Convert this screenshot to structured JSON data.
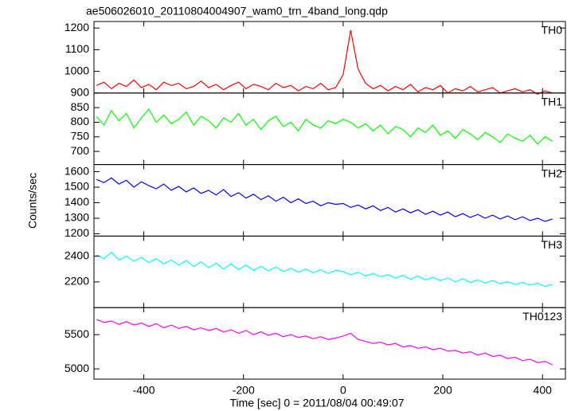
{
  "chart_data": {
    "type": "line",
    "title": "ae506026010_20110804004907_wam0_trn_4band_long.qdp",
    "x_label": "Time [sec] 0 = 2011/08/04 00:49:07",
    "y_label": "Counts/sec",
    "xlim": [
      -500,
      446
    ],
    "xticks": [
      -400,
      -200,
      0,
      200,
      400
    ],
    "x": [
      -495,
      -480,
      -465,
      -450,
      -435,
      -420,
      -405,
      -390,
      -375,
      -360,
      -345,
      -330,
      -315,
      -300,
      -285,
      -270,
      -255,
      -240,
      -225,
      -210,
      -195,
      -180,
      -165,
      -150,
      -135,
      -120,
      -105,
      -90,
      -75,
      -60,
      -45,
      -30,
      -15,
      0,
      15,
      30,
      45,
      60,
      75,
      90,
      105,
      120,
      135,
      150,
      165,
      180,
      195,
      210,
      225,
      240,
      255,
      270,
      285,
      300,
      315,
      330,
      345,
      360,
      375,
      390,
      405,
      420
    ],
    "series": [
      {
        "name": "TH0",
        "color": "#ff0000",
        "ylim": [
          900,
          1230
        ],
        "yticks": [
          900,
          1000,
          1100,
          1200
        ],
        "values": [
          935,
          950,
          920,
          945,
          930,
          960,
          925,
          940,
          915,
          950,
          935,
          945,
          920,
          930,
          955,
          925,
          940,
          915,
          935,
          950,
          920,
          940,
          930,
          915,
          945,
          925,
          935,
          910,
          930,
          920,
          945,
          915,
          925,
          985,
          1190,
          1010,
          945,
          920,
          935,
          910,
          930,
          915,
          940,
          905,
          925,
          915,
          935,
          900,
          920,
          910,
          930,
          905,
          915,
          925,
          900,
          910,
          920,
          905,
          915,
          895,
          910,
          900
        ]
      },
      {
        "name": "TH1",
        "color": "#00ff00",
        "ylim": [
          655,
          900
        ],
        "yticks": [
          700,
          750,
          800,
          850
        ],
        "values": [
          820,
          790,
          840,
          805,
          830,
          780,
          815,
          845,
          800,
          825,
          795,
          810,
          835,
          790,
          820,
          805,
          780,
          815,
          800,
          830,
          790,
          810,
          775,
          805,
          820,
          785,
          800,
          770,
          810,
          790,
          780,
          805,
          795,
          810,
          800,
          780,
          795,
          770,
          790,
          760,
          785,
          775,
          750,
          780,
          765,
          790,
          755,
          770,
          745,
          775,
          760,
          740,
          765,
          750,
          730,
          760,
          745,
          735,
          755,
          725,
          750,
          735
        ]
      },
      {
        "name": "TH2",
        "color": "#0000ff",
        "ylim": [
          1185,
          1646
        ],
        "yticks": [
          1200,
          1300,
          1400,
          1500,
          1600
        ],
        "values": [
          1550,
          1530,
          1560,
          1520,
          1545,
          1500,
          1535,
          1510,
          1490,
          1520,
          1480,
          1505,
          1470,
          1495,
          1460,
          1480,
          1450,
          1485,
          1440,
          1465,
          1430,
          1455,
          1420,
          1445,
          1410,
          1435,
          1400,
          1425,
          1395,
          1410,
          1380,
          1400,
          1390,
          1395,
          1370,
          1385,
          1360,
          1380,
          1350,
          1370,
          1340,
          1360,
          1335,
          1355,
          1325,
          1345,
          1320,
          1340,
          1310,
          1330,
          1305,
          1325,
          1300,
          1320,
          1295,
          1315,
          1290,
          1310,
          1285,
          1300,
          1280,
          1295
        ]
      },
      {
        "name": "TH3",
        "color": "#00ffff",
        "ylim": [
          2000,
          2556
        ],
        "yticks": [
          2200,
          2400
        ],
        "values": [
          2410,
          2380,
          2430,
          2370,
          2400,
          2360,
          2390,
          2350,
          2380,
          2340,
          2370,
          2330,
          2365,
          2320,
          2355,
          2310,
          2345,
          2300,
          2340,
          2295,
          2330,
          2290,
          2320,
          2285,
          2315,
          2280,
          2305,
          2275,
          2300,
          2270,
          2295,
          2265,
          2290,
          2280,
          2255,
          2275,
          2245,
          2265,
          2240,
          2255,
          2230,
          2250,
          2220,
          2245,
          2215,
          2235,
          2210,
          2230,
          2200,
          2225,
          2195,
          2215,
          2190,
          2210,
          2185,
          2200,
          2180,
          2195,
          2175,
          2190,
          2165,
          2180
        ]
      },
      {
        "name": "TH0123",
        "color": "#ff00ff",
        "ylim": [
          4850,
          5895
        ],
        "yticks": [
          5000,
          5500
        ],
        "values": [
          5720,
          5680,
          5700,
          5650,
          5690,
          5640,
          5670,
          5620,
          5660,
          5600,
          5640,
          5590,
          5620,
          5570,
          5600,
          5560,
          5590,
          5540,
          5570,
          5520,
          5560,
          5500,
          5540,
          5490,
          5520,
          5470,
          5500,
          5460,
          5480,
          5440,
          5470,
          5430,
          5450,
          5480,
          5520,
          5430,
          5400,
          5370,
          5390,
          5350,
          5370,
          5320,
          5340,
          5300,
          5320,
          5280,
          5300,
          5260,
          5270,
          5230,
          5250,
          5200,
          5230,
          5180,
          5200,
          5150,
          5170,
          5120,
          5140,
          5090,
          5110,
          5060
        ]
      }
    ]
  }
}
